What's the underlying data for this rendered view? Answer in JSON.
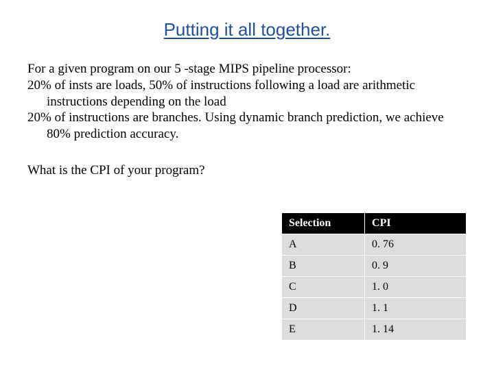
{
  "title": "Putting it all together.",
  "body": {
    "line1": "For a given program on our 5 -stage MIPS pipeline processor:",
    "line2": "20% of insts are loads, 50% of instructions following a load are arithmetic instructions depending on the load",
    "line3": "20% of instructions are branches.  Using dynamic branch prediction, we achieve 80% prediction accuracy."
  },
  "question": "What is the CPI of your program?",
  "table": {
    "headers": {
      "selection": "Selection",
      "cpi": "CPI"
    },
    "rows": [
      {
        "sel": "A",
        "cpi": "0. 76"
      },
      {
        "sel": "B",
        "cpi": "0. 9"
      },
      {
        "sel": "C",
        "cpi": "1. 0"
      },
      {
        "sel": "D",
        "cpi": "1. 1"
      },
      {
        "sel": "E",
        "cpi": "1. 14"
      }
    ],
    "header_bg": "#000000",
    "header_fg": "#ffffff",
    "row_bg": "#dcdcdc",
    "row_fg": "#000000",
    "border_color": "#ffffff"
  },
  "colors": {
    "title_color": "#1f4fa0",
    "text_color": "#000000",
    "background": "#ffffff"
  },
  "fonts": {
    "title_family": "Arial",
    "title_size_pt": 20,
    "body_family": "Times New Roman",
    "body_size_pt": 14,
    "table_size_pt": 12
  }
}
